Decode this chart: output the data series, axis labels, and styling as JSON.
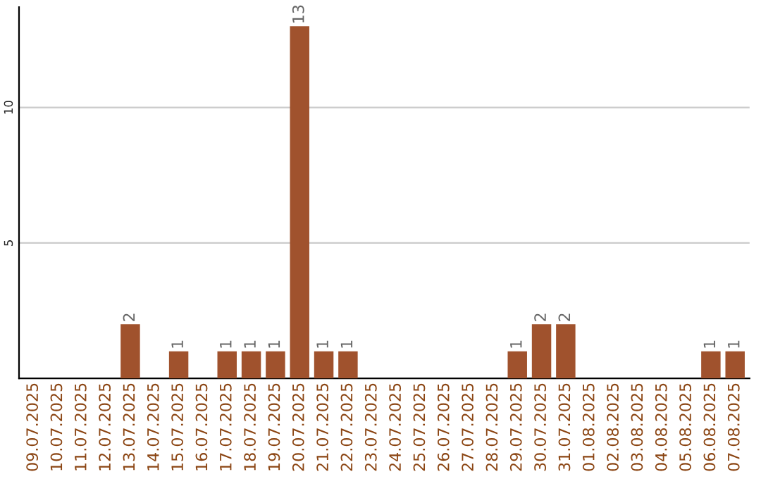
{
  "chart_data": {
    "type": "bar",
    "categories": [
      "09.07.2025",
      "10.07.2025",
      "11.07.2025",
      "12.07.2025",
      "13.07.2025",
      "14.07.2025",
      "15.07.2025",
      "16.07.2025",
      "17.07.2025",
      "18.07.2025",
      "19.07.2025",
      "20.07.2025",
      "21.07.2025",
      "22.07.2025",
      "23.07.2025",
      "24.07.2025",
      "25.07.2025",
      "26.07.2025",
      "27.07.2025",
      "28.07.2025",
      "29.07.2025",
      "30.07.2025",
      "31.07.2025",
      "01.08.2025",
      "02.08.2025",
      "03.08.2025",
      "04.08.2025",
      "05.08.2025",
      "06.08.2025",
      "07.08.2025"
    ],
    "values": [
      0,
      0,
      0,
      0,
      2,
      0,
      1,
      0,
      1,
      1,
      1,
      13,
      1,
      1,
      0,
      0,
      0,
      0,
      0,
      0,
      1,
      2,
      2,
      0,
      0,
      0,
      0,
      0,
      1,
      1
    ],
    "value_labels": [
      null,
      null,
      null,
      null,
      "2",
      null,
      "1",
      null,
      "1",
      "1",
      "1",
      "13",
      "1",
      "1",
      null,
      null,
      null,
      null,
      null,
      null,
      "1",
      "2",
      "2",
      null,
      null,
      null,
      null,
      null,
      "1",
      "1"
    ],
    "color": "#a0522d",
    "ylim": [
      0,
      13.7
    ],
    "yticks": [
      5,
      10
    ],
    "grid": "y",
    "legend": false
  }
}
